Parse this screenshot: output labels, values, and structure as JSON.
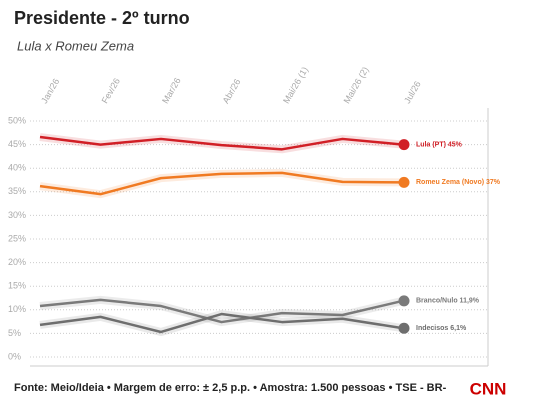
{
  "chart_data": {
    "type": "line",
    "title": "Presidente - 2º turno",
    "subtitle": "Lula x Romeu Zema",
    "categories": [
      "Jan/26",
      "Fev/26",
      "Mar/26",
      "Abr/26",
      "Mai/26 (1)",
      "Mai/26 (2)",
      "Jul/26"
    ],
    "series": [
      {
        "name": "Lula (PT) 45%",
        "color": "#d11f26",
        "values": [
          46.6,
          45,
          46.2,
          44.9,
          44,
          46.2,
          45
        ]
      },
      {
        "name": "Romeu Zema (Novo) 37%",
        "color": "#f07a22",
        "values": [
          36.2,
          34.5,
          37.9,
          38.8,
          39,
          37.1,
          37
        ]
      },
      {
        "name": "Branco/Nulo 11,9%",
        "color": "#7a7a7a",
        "values": [
          10.8,
          12.1,
          10.8,
          7.4,
          9.3,
          8.9,
          11.9
        ]
      },
      {
        "name": "Indecisos 6,1%",
        "color": "#6e6e6e",
        "values": [
          6.8,
          8.5,
          5.3,
          9.1,
          7.4,
          8.1,
          6.1
        ]
      }
    ],
    "ylim": [
      0,
      50
    ],
    "yticks": [
      {
        "value": 0,
        "label": "0%"
      },
      {
        "value": 5,
        "label": "5%"
      },
      {
        "value": 10,
        "label": "10%"
      },
      {
        "value": 15,
        "label": "15%"
      },
      {
        "value": 20,
        "label": "20%"
      },
      {
        "value": 25,
        "label": "25%"
      },
      {
        "value": 30,
        "label": "30%"
      },
      {
        "value": 35,
        "label": "35%"
      },
      {
        "value": 40,
        "label": "40%"
      },
      {
        "value": 45,
        "label": "45%"
      },
      {
        "value": 50,
        "label": "50%"
      }
    ],
    "grid": true,
    "source": "Fonte: Meio/Ideia • Margem de erro: ± 2,5 p.p. • Amostra: 1.500 pessoas • TSE - BR-",
    "logo": "CNN"
  }
}
